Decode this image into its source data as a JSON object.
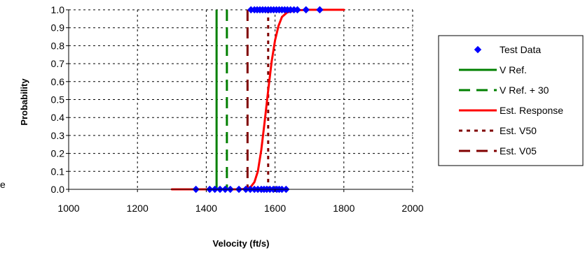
{
  "chart_data": {
    "type": "scatter",
    "title": "",
    "xlabel": "Velocity (ft/s)",
    "ylabel": "Probability",
    "xlim": [
      1000,
      2000
    ],
    "ylim": [
      0,
      1
    ],
    "x_ticks": [
      "1000",
      "1200",
      "1400",
      "1600",
      "1800",
      "2000"
    ],
    "y_ticks": [
      "0.0",
      "0.1",
      "0.2",
      "0.3",
      "0.4",
      "0.5",
      "0.6",
      "0.7",
      "0.8",
      "0.9",
      "1.0"
    ],
    "grid": true,
    "left_fragment_text": "e",
    "legend": {
      "placement": "right",
      "entries": [
        {
          "label": "Test Data",
          "color": "#0000ff",
          "style": "diamond"
        },
        {
          "label": "V Ref.",
          "color": "#008000",
          "style": "solid"
        },
        {
          "label": "V Ref. + 30",
          "color": "#008000",
          "style": "dashed"
        },
        {
          "label": "Est. Response",
          "color": "#ff0000",
          "style": "solid"
        },
        {
          "label": "Est. V50",
          "color": "#800000",
          "style": "dotted"
        },
        {
          "label": "Est. V05",
          "color": "#800000",
          "style": "dashed"
        }
      ]
    },
    "series": [
      {
        "name": "Test Data",
        "type": "scatter",
        "color": "#0000ff",
        "points": [
          {
            "x": 1370,
            "y": 0
          },
          {
            "x": 1410,
            "y": 0
          },
          {
            "x": 1425,
            "y": 0
          },
          {
            "x": 1440,
            "y": 0
          },
          {
            "x": 1455,
            "y": 0
          },
          {
            "x": 1470,
            "y": 0
          },
          {
            "x": 1495,
            "y": 0
          },
          {
            "x": 1515,
            "y": 0
          },
          {
            "x": 1528,
            "y": 0
          },
          {
            "x": 1540,
            "y": 0
          },
          {
            "x": 1550,
            "y": 0
          },
          {
            "x": 1560,
            "y": 0
          },
          {
            "x": 1568,
            "y": 0
          },
          {
            "x": 1576,
            "y": 0
          },
          {
            "x": 1585,
            "y": 0
          },
          {
            "x": 1595,
            "y": 0
          },
          {
            "x": 1605,
            "y": 0
          },
          {
            "x": 1612,
            "y": 0
          },
          {
            "x": 1620,
            "y": 0
          },
          {
            "x": 1632,
            "y": 0
          },
          {
            "x": 1530,
            "y": 1
          },
          {
            "x": 1540,
            "y": 1
          },
          {
            "x": 1548,
            "y": 1
          },
          {
            "x": 1556,
            "y": 1
          },
          {
            "x": 1564,
            "y": 1
          },
          {
            "x": 1572,
            "y": 1
          },
          {
            "x": 1580,
            "y": 1
          },
          {
            "x": 1588,
            "y": 1
          },
          {
            "x": 1596,
            "y": 1
          },
          {
            "x": 1604,
            "y": 1
          },
          {
            "x": 1612,
            "y": 1
          },
          {
            "x": 1620,
            "y": 1
          },
          {
            "x": 1628,
            "y": 1
          },
          {
            "x": 1636,
            "y": 1
          },
          {
            "x": 1645,
            "y": 1
          },
          {
            "x": 1655,
            "y": 1
          },
          {
            "x": 1665,
            "y": 1
          },
          {
            "x": 1690,
            "y": 1
          },
          {
            "x": 1730,
            "y": 1
          }
        ]
      },
      {
        "name": "V Ref.",
        "type": "vline",
        "x": 1430,
        "color": "#008000",
        "style": "solid"
      },
      {
        "name": "V Ref. + 30",
        "type": "vline",
        "x": 1460,
        "color": "#008000",
        "style": "dashed"
      },
      {
        "name": "Est. Response",
        "type": "line",
        "color": "#ff0000",
        "points": [
          {
            "x": 1300,
            "y": 0.0
          },
          {
            "x": 1450,
            "y": 0.0
          },
          {
            "x": 1500,
            "y": 0.0
          },
          {
            "x": 1520,
            "y": 0.005
          },
          {
            "x": 1530,
            "y": 0.015
          },
          {
            "x": 1540,
            "y": 0.04
          },
          {
            "x": 1550,
            "y": 0.1
          },
          {
            "x": 1560,
            "y": 0.22
          },
          {
            "x": 1570,
            "y": 0.38
          },
          {
            "x": 1580,
            "y": 0.55
          },
          {
            "x": 1590,
            "y": 0.71
          },
          {
            "x": 1600,
            "y": 0.83
          },
          {
            "x": 1610,
            "y": 0.91
          },
          {
            "x": 1620,
            "y": 0.96
          },
          {
            "x": 1635,
            "y": 0.985
          },
          {
            "x": 1660,
            "y": 0.997
          },
          {
            "x": 1700,
            "y": 1.0
          },
          {
            "x": 1800,
            "y": 1.0
          }
        ]
      },
      {
        "name": "Est. V50",
        "type": "vline",
        "x": 1580,
        "color": "#800000",
        "style": "dotted"
      },
      {
        "name": "Est. V05",
        "type": "vline",
        "x": 1520,
        "color": "#800000",
        "style": "dashed"
      }
    ]
  }
}
